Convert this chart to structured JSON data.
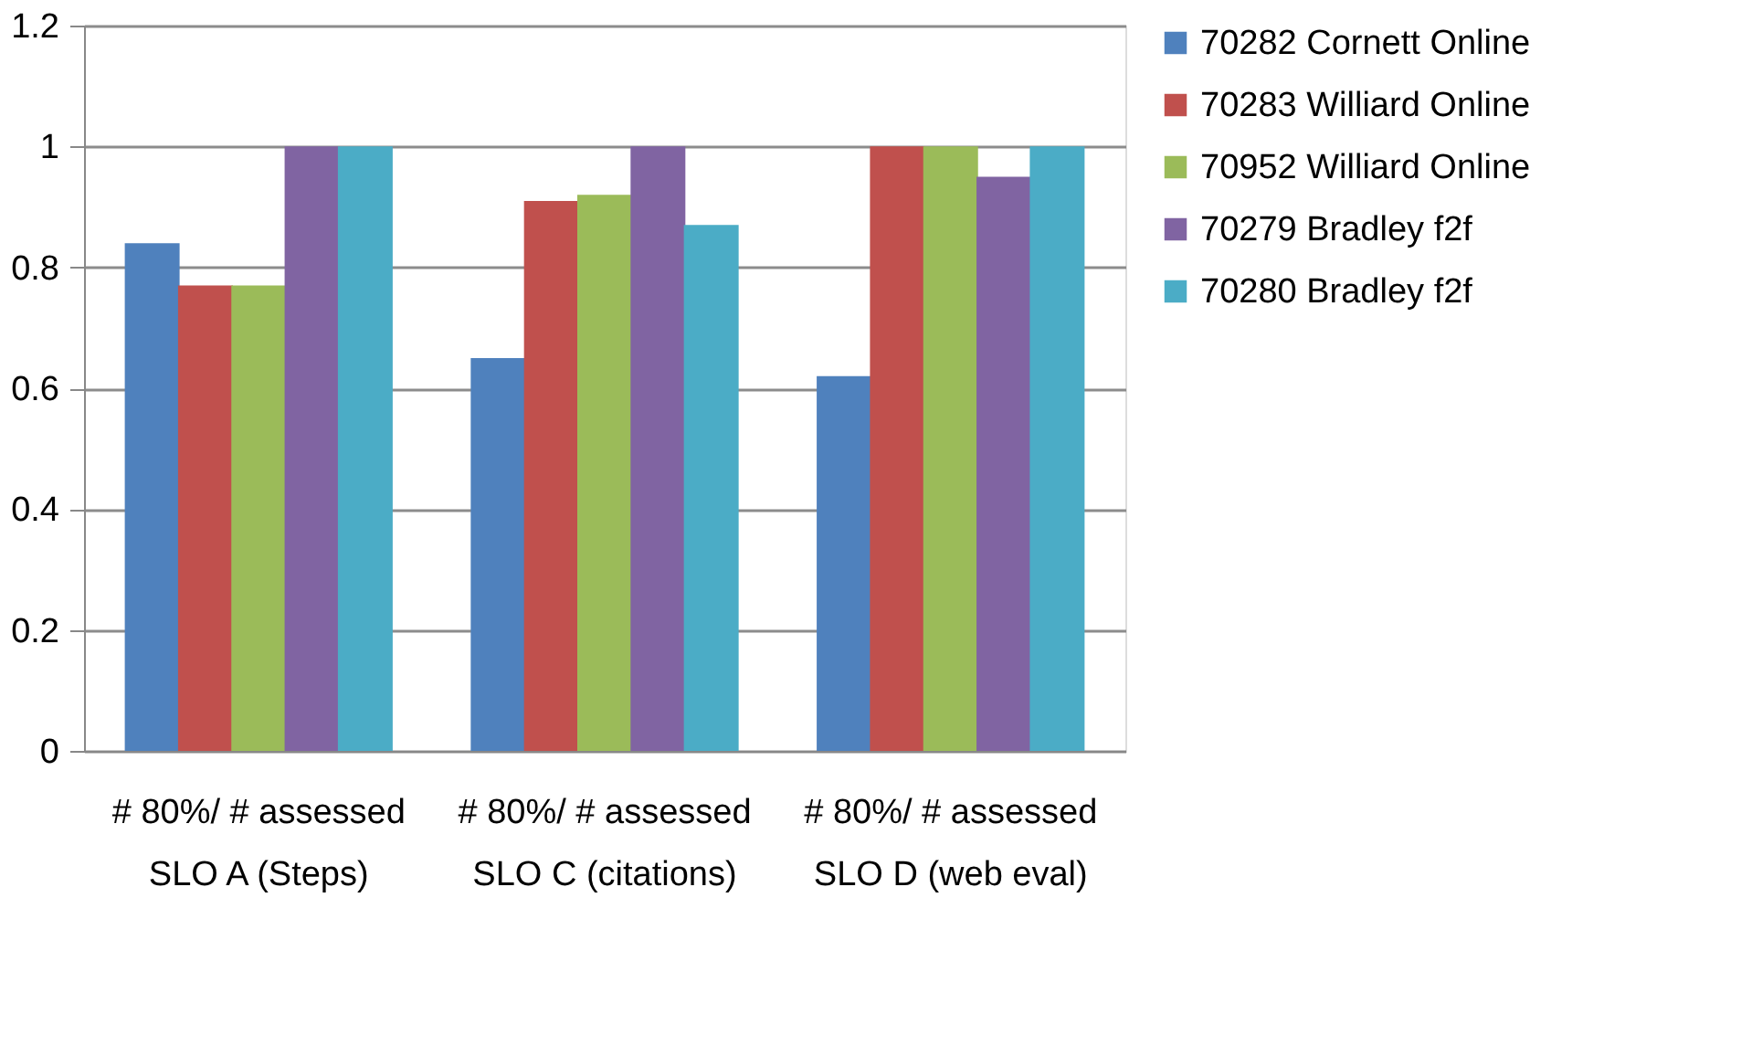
{
  "chart_data": {
    "type": "bar",
    "categories": [
      "# 80%/ # assessed\nSLO A (Steps)",
      "# 80%/ # assessed\nSLO C (citations)",
      "# 80%/ # assessed\nSLO D (web eval)"
    ],
    "series": [
      {
        "name": "70282 Cornett Online",
        "color": "#4f81bd",
        "values": [
          0.84,
          0.65,
          0.62
        ]
      },
      {
        "name": "70283 Williard Online",
        "color": "#c0504d",
        "values": [
          0.77,
          0.91,
          1.0
        ]
      },
      {
        "name": "70952 Williard Online",
        "color": "#9bbb59",
        "values": [
          0.77,
          0.92,
          1.0
        ]
      },
      {
        "name": "70279 Bradley f2f",
        "color": "#8064a2",
        "values": [
          1.0,
          1.0,
          0.95
        ]
      },
      {
        "name": "70280 Bradley f2f",
        "color": "#4bacc6",
        "values": [
          1.0,
          0.87,
          1.0
        ]
      }
    ],
    "ylim": [
      0,
      1.2
    ],
    "yticks": [
      0,
      0.2,
      0.4,
      0.6,
      0.8,
      1,
      1.2
    ],
    "grid": "y",
    "legend": "right"
  }
}
